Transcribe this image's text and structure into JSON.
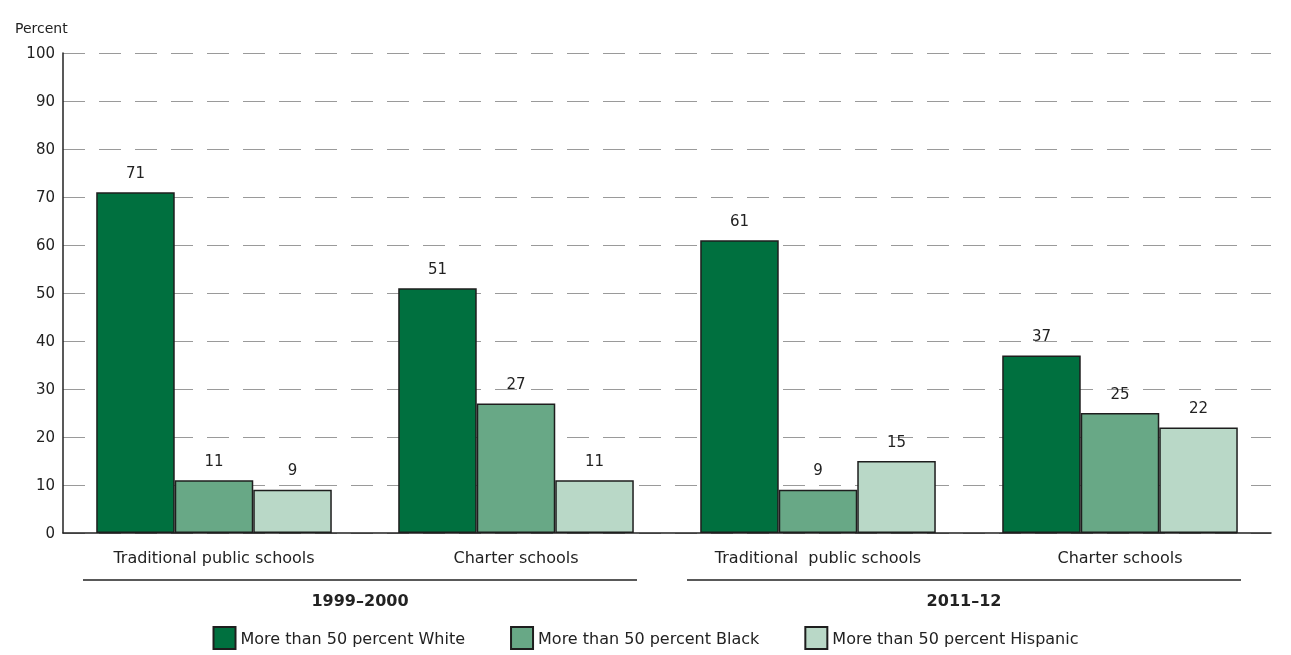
{
  "chart_data": {
    "type": "bar",
    "ylabel": "Percent",
    "categories": [
      "Traditional public schools",
      "Charter schools",
      "Traditional  public schools",
      "Charter schools"
    ],
    "series": [
      {
        "name": "More than 50 percent White",
        "color": "#00703f",
        "values": [
          71,
          51,
          61,
          37
        ]
      },
      {
        "name": "More than 50 percent Black",
        "color": "#68a886",
        "values": [
          11,
          27,
          9,
          25
        ]
      },
      {
        "name": "More than 50 percent Hispanic",
        "color": "#b9d8c7",
        "values": [
          9,
          11,
          15,
          22
        ]
      }
    ],
    "ylim": [
      0,
      100
    ],
    "yticks": [
      0,
      10,
      20,
      30,
      40,
      50,
      60,
      70,
      80,
      90,
      100
    ],
    "grid": "y",
    "legend": "bottom",
    "data_labels": true,
    "annotations": [
      "1999–2000",
      "2011–12"
    ]
  }
}
